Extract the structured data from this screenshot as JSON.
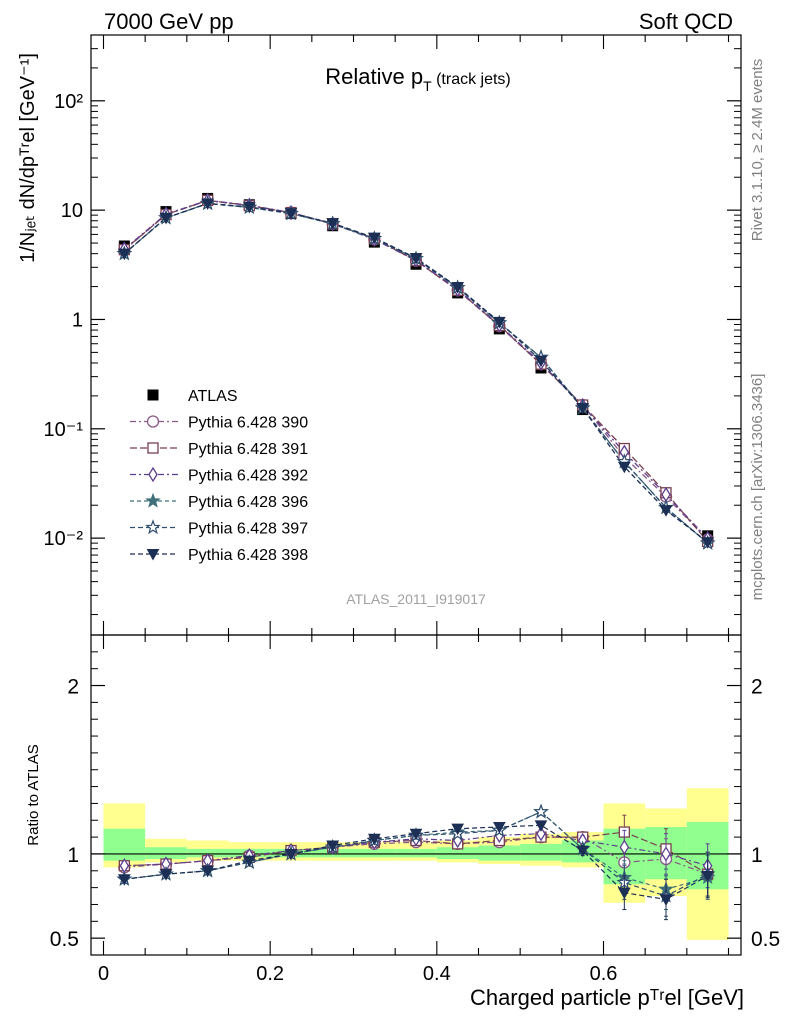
{
  "header": {
    "energy": "7000 GeV pp",
    "category": "Soft QCD"
  },
  "side": {
    "rivet": "Rivet 3.1.10, ≥ 2.4M events",
    "mcplots": "mcplots.cern.ch [arXiv:1306.3436]"
  },
  "colors": {
    "data": "#000000",
    "band_yellow": "#ffff90",
    "band_green": "#90ff90",
    "p390": "#8a5a86",
    "p391": "#7a3f4f",
    "p392": "#5e3f8f",
    "p396": "#3f6f7a",
    "p397": "#2f4f6f",
    "p398": "#1c2f55"
  },
  "chart_data": [
    {
      "type": "scatter",
      "title_main": "Relative p",
      "title_sub": "T",
      "title_suffix": " (track jets)",
      "analysis_id": "ATLAS_2011_I919017",
      "ylabel": "1/Nⱼₑₜ dN/dpᵀʳel [GeV⁻¹]",
      "yscale": "log",
      "ylim": [
        0.0013,
        400
      ],
      "xlim": [
        -0.015,
        0.765
      ],
      "y_ticks": [
        "10⁻²",
        "10⁻¹",
        "1",
        "10",
        "10²"
      ],
      "y_tick_values": [
        0.01,
        0.1,
        1,
        10,
        100
      ],
      "x": [
        0.025,
        0.075,
        0.125,
        0.175,
        0.225,
        0.275,
        0.325,
        0.375,
        0.425,
        0.475,
        0.525,
        0.575,
        0.625,
        0.675,
        0.725
      ],
      "data": {
        "name": "ATLAS",
        "values": [
          4.7,
          9.7,
          12.8,
          11.2,
          9.3,
          7.2,
          5.1,
          3.2,
          1.75,
          0.82,
          0.36,
          0.15,
          0.058,
          0.025,
          0.0105
        ]
      },
      "series": [
        {
          "name": "Pythia 6.428 390",
          "marker": "circle",
          "color": "#8a5a86",
          "values": [
            4.3,
            9.1,
            12.2,
            11.0,
            9.5,
            7.5,
            5.4,
            3.45,
            1.85,
            0.87,
            0.39,
            0.165,
            0.055,
            0.024,
            0.0097
          ]
        },
        {
          "name": "Pythia 6.428 391",
          "marker": "square",
          "color": "#7a3f4f",
          "values": [
            4.35,
            9.1,
            12.3,
            11.0,
            9.5,
            7.5,
            5.5,
            3.45,
            1.85,
            0.88,
            0.39,
            0.165,
            0.066,
            0.026,
            0.0093
          ]
        },
        {
          "name": "Pythia 6.428 392",
          "marker": "diamond",
          "color": "#5e3f8f",
          "values": [
            4.4,
            9.2,
            12.3,
            11.1,
            9.5,
            7.5,
            5.4,
            3.5,
            1.88,
            0.89,
            0.4,
            0.163,
            0.061,
            0.025,
            0.0099
          ]
        },
        {
          "name": "Pythia 6.428 396",
          "marker": "star",
          "color": "#3f6f7a",
          "values": [
            4.0,
            8.5,
            11.5,
            10.6,
            9.3,
            7.5,
            5.5,
            3.6,
            1.95,
            0.93,
            0.45,
            0.155,
            0.05,
            0.019,
            0.009
          ]
        },
        {
          "name": "Pythia 6.428 397",
          "marker": "star-open",
          "color": "#2f4f6f",
          "values": [
            4.0,
            8.5,
            11.5,
            10.6,
            9.3,
            7.5,
            5.5,
            3.6,
            1.95,
            0.93,
            0.45,
            0.155,
            0.05,
            0.019,
            0.009
          ]
        },
        {
          "name": "Pythia 6.428 398",
          "marker": "triangle-down",
          "color": "#1c2f55",
          "values": [
            4.0,
            8.5,
            11.5,
            10.7,
            9.4,
            7.6,
            5.6,
            3.65,
            1.98,
            0.95,
            0.42,
            0.155,
            0.045,
            0.018,
            0.0092
          ]
        }
      ]
    },
    {
      "type": "scatter",
      "ylabel": "Ratio to ATLAS",
      "xlabel": "Charged particle pᵀʳel [GeV]",
      "ylim": [
        0.4,
        2.3
      ],
      "xlim": [
        -0.015,
        0.765
      ],
      "y_ticks": [
        "0.5",
        "1",
        "2"
      ],
      "y_tick_values": [
        0.5,
        1,
        2
      ],
      "x_ticks": [
        "0",
        "0.2",
        "0.4",
        "0.6"
      ],
      "x_tick_values": [
        0,
        0.2,
        0.4,
        0.6
      ],
      "bin_edges": [
        0,
        0.05,
        0.1,
        0.15,
        0.2,
        0.25,
        0.3,
        0.35,
        0.4,
        0.45,
        0.5,
        0.55,
        0.6,
        0.65,
        0.7,
        0.75
      ],
      "yellow_band": {
        "lo": [
          0.92,
          0.95,
          0.96,
          0.96,
          0.96,
          0.96,
          0.96,
          0.96,
          0.95,
          0.94,
          0.93,
          0.92,
          0.71,
          0.75,
          0.49
        ],
        "hi": [
          1.3,
          1.09,
          1.08,
          1.07,
          1.07,
          1.07,
          1.07,
          1.07,
          1.08,
          1.1,
          1.12,
          1.13,
          1.3,
          1.27,
          1.39
        ]
      },
      "green_band": {
        "lo": [
          0.96,
          0.97,
          0.98,
          0.98,
          0.98,
          0.98,
          0.98,
          0.98,
          0.97,
          0.96,
          0.96,
          0.95,
          0.82,
          0.85,
          0.79
        ],
        "hi": [
          1.15,
          1.04,
          1.03,
          1.03,
          1.03,
          1.03,
          1.03,
          1.03,
          1.04,
          1.05,
          1.06,
          1.08,
          1.15,
          1.16,
          1.19
        ]
      },
      "x": [
        0.025,
        0.075,
        0.125,
        0.175,
        0.225,
        0.275,
        0.325,
        0.375,
        0.425,
        0.475,
        0.525,
        0.575,
        0.625,
        0.675,
        0.725
      ],
      "ratio_errors": [
        0.005,
        0.005,
        0.005,
        0.005,
        0.005,
        0.005,
        0.005,
        0.005,
        0.01,
        0.015,
        0.02,
        0.03,
        0.1,
        0.12,
        0.13
      ],
      "series": [
        {
          "name": "Pythia 6.428 390",
          "marker": "circle",
          "color": "#8a5a86",
          "values": [
            0.92,
            0.94,
            0.96,
            0.99,
            1.02,
            1.04,
            1.06,
            1.07,
            1.06,
            1.07,
            1.1,
            1.1,
            0.95,
            0.97,
            0.88
          ]
        },
        {
          "name": "Pythia 6.428 391",
          "marker": "square",
          "color": "#7a3f4f",
          "values": [
            0.93,
            0.94,
            0.96,
            0.98,
            1.02,
            1.04,
            1.07,
            1.08,
            1.06,
            1.08,
            1.1,
            1.1,
            1.13,
            1.03,
            0.88
          ]
        },
        {
          "name": "Pythia 6.428 392",
          "marker": "diamond",
          "color": "#5e3f8f",
          "values": [
            0.93,
            0.94,
            0.96,
            0.99,
            1.02,
            1.04,
            1.07,
            1.09,
            1.08,
            1.11,
            1.12,
            1.08,
            1.04,
            1.0,
            0.93
          ]
        },
        {
          "name": "Pythia 6.428 396",
          "marker": "star",
          "color": "#3f6f7a",
          "values": [
            0.85,
            0.88,
            0.9,
            0.95,
            1.0,
            1.04,
            1.08,
            1.11,
            1.13,
            1.14,
            1.25,
            1.03,
            0.86,
            0.79,
            0.86
          ]
        },
        {
          "name": "Pythia 6.428 397",
          "marker": "star-open",
          "color": "#2f4f6f",
          "values": [
            0.85,
            0.88,
            0.9,
            0.95,
            1.0,
            1.04,
            1.08,
            1.11,
            1.12,
            1.14,
            1.25,
            1.03,
            0.83,
            0.75,
            0.88
          ]
        },
        {
          "name": "Pythia 6.428 398",
          "marker": "triangle-down",
          "color": "#1c2f55",
          "values": [
            0.85,
            0.88,
            0.9,
            0.96,
            1.0,
            1.05,
            1.09,
            1.12,
            1.15,
            1.16,
            1.17,
            1.02,
            0.77,
            0.73,
            0.87
          ]
        }
      ]
    }
  ],
  "legend": {
    "entries": [
      "ATLAS",
      "Pythia 6.428 390",
      "Pythia 6.428 391",
      "Pythia 6.428 392",
      "Pythia 6.428 396",
      "Pythia 6.428 397",
      "Pythia 6.428 398"
    ]
  }
}
